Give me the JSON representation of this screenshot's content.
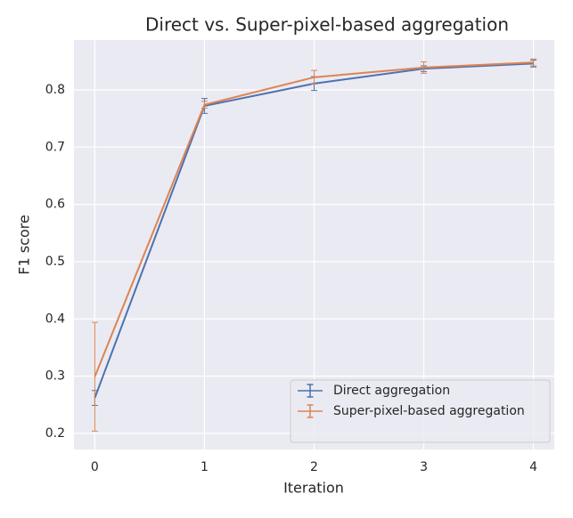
{
  "chart_data": {
    "type": "line",
    "title": "Direct vs. Super-pixel-based aggregation",
    "x_label": "Iteration",
    "y_label": "F1 score",
    "x": [
      0,
      1,
      2,
      3,
      4
    ],
    "series": [
      {
        "name": "Direct aggregation",
        "color": "#4c72b0",
        "values": [
          0.262,
          0.772,
          0.811,
          0.837,
          0.846
        ],
        "errors": [
          0.013,
          0.013,
          0.012,
          0.005,
          0.006
        ]
      },
      {
        "name": "Super-pixel-based aggregation",
        "color": "#dd8452",
        "values": [
          0.299,
          0.774,
          0.822,
          0.839,
          0.848
        ],
        "errors": [
          0.095,
          0.006,
          0.012,
          0.01,
          0.006
        ]
      }
    ],
    "xlim": [
      -0.19,
      4.19
    ],
    "ylim": [
      0.172,
      0.887
    ],
    "xticks": [
      0,
      1,
      2,
      3,
      4
    ],
    "yticks": [
      0.2,
      0.3,
      0.4,
      0.5,
      0.6,
      0.7,
      0.8
    ],
    "grid": true,
    "legend": "lower right"
  }
}
